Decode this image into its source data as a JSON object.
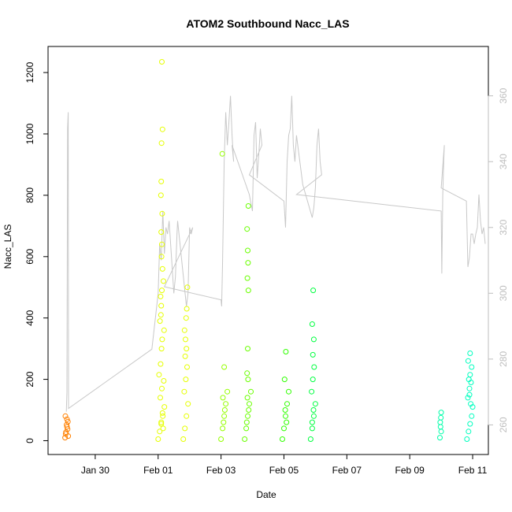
{
  "chart_data": {
    "type": "scatter",
    "title": "ATOM2 Southbound Nacc_LAS",
    "xlabel": "Date",
    "ylabel": "Nacc_LAS",
    "x_unit": "days since Jan 30",
    "xlim": [
      -1.5,
      12.5
    ],
    "ylim": [
      -45,
      1285
    ],
    "y2lim": [
      251,
      375
    ],
    "x_ticks": [
      {
        "x": 0,
        "label": "Jan 30"
      },
      {
        "x": 2,
        "label": "Feb 01"
      },
      {
        "x": 4,
        "label": "Feb 03"
      },
      {
        "x": 6,
        "label": "Feb 05"
      },
      {
        "x": 8,
        "label": "Feb 07"
      },
      {
        "x": 10,
        "label": "Feb 09"
      },
      {
        "x": 12,
        "label": "Feb 11"
      }
    ],
    "y_ticks": [
      0,
      200,
      400,
      600,
      800,
      1000,
      1200
    ],
    "y2_ticks": [
      260,
      280,
      300,
      320,
      340,
      360
    ],
    "right_axis_color": "#bebebe",
    "line_color": "#c8c8c8",
    "point_series": [
      {
        "color": "#ff8000",
        "x": [
          -0.96,
          -0.93,
          -0.9,
          -0.87,
          -0.95,
          -0.91,
          -0.88,
          -0.94,
          -0.9,
          -0.86
        ],
        "y": [
          10,
          28,
          45,
          62,
          80,
          52,
          38,
          22,
          70,
          15
        ]
      },
      {
        "color": "#e6ff00",
        "x": [
          2.0,
          2.05,
          2.1,
          2.15,
          2.2,
          2.07,
          2.12,
          2.18,
          2.03,
          2.14,
          2.1,
          2.16,
          2.08,
          2.11,
          2.13,
          2.19,
          2.06,
          2.09,
          2.1,
          2.08,
          2.12,
          2.17,
          2.14,
          2.11,
          2.12,
          2.1,
          2.13,
          2.09,
          2.1,
          2.11,
          2.14,
          2.12
        ],
        "y": [
          5,
          30,
          55,
          80,
          110,
          140,
          170,
          195,
          215,
          90,
          60,
          40,
          250,
          300,
          330,
          360,
          390,
          410,
          440,
          470,
          490,
          520,
          560,
          600,
          640,
          680,
          740,
          800,
          845,
          970,
          1015,
          1235
        ]
      },
      {
        "color": "#e6ff00",
        "x": [
          2.8,
          2.85,
          2.9,
          2.95,
          2.83,
          2.88,
          2.92,
          2.86,
          2.9,
          2.87,
          2.84,
          2.89,
          2.91,
          2.93
        ],
        "y": [
          5,
          40,
          80,
          120,
          160,
          200,
          240,
          275,
          300,
          330,
          360,
          400,
          430,
          500
        ]
      },
      {
        "color": "#95ff00",
        "x": [
          4.0,
          4.05,
          4.1,
          4.15,
          4.2,
          4.08,
          4.12,
          4.06,
          4.1,
          4.04
        ],
        "y": [
          5,
          40,
          80,
          120,
          160,
          60,
          100,
          140,
          240,
          935
        ]
      },
      {
        "color": "#6aff00",
        "x": [
          4.75,
          4.8,
          4.85,
          4.9,
          4.95,
          4.82,
          4.88,
          4.84,
          4.86,
          4.83,
          4.85,
          4.87,
          4.84,
          4.86,
          4.85,
          4.83,
          4.87
        ],
        "y": [
          5,
          40,
          80,
          120,
          160,
          60,
          100,
          140,
          200,
          220,
          300,
          490,
          530,
          580,
          620,
          690,
          765
        ]
      },
      {
        "color": "#30ff00",
        "x": [
          5.95,
          6.0,
          6.05,
          6.1,
          6.15,
          6.02,
          6.08,
          6.04,
          6.06
        ],
        "y": [
          5,
          40,
          80,
          120,
          160,
          200,
          60,
          100,
          290
        ]
      },
      {
        "color": "#00ff40",
        "x": [
          6.85,
          6.9,
          6.95,
          7.0,
          6.88,
          6.92,
          6.9,
          6.94,
          6.96,
          6.92,
          6.95,
          6.9,
          6.93
        ],
        "y": [
          5,
          40,
          80,
          120,
          160,
          200,
          60,
          100,
          240,
          280,
          330,
          380,
          490
        ]
      },
      {
        "color": "#00ffaa",
        "x": [
          10.96,
          11.0,
          10.98,
          10.97,
          10.99,
          11.0
        ],
        "y": [
          10,
          30,
          45,
          60,
          75,
          92
        ]
      },
      {
        "color": "#00ffbf",
        "x": [
          11.82,
          11.87,
          11.92,
          11.97,
          12.0,
          11.85,
          11.9,
          11.95,
          11.88,
          11.92,
          11.97,
          11.9,
          11.94,
          11.86,
          11.92
        ],
        "y": [
          5,
          30,
          55,
          80,
          110,
          140,
          170,
          190,
          200,
          215,
          240,
          150,
          120,
          260,
          285
        ]
      }
    ],
    "line_series": {
      "axis": "right",
      "x": [
        -0.92,
        -0.9,
        -0.88,
        -0.86,
        -0.85,
        1.8,
        2.0,
        2.05,
        2.1,
        2.15,
        2.2,
        2.25,
        2.3,
        2.35,
        2.5,
        2.55,
        2.6,
        2.62,
        2.9,
        2.95,
        3.0,
        3.05,
        3.1,
        2.2,
        4.0,
        4.02,
        4.05,
        4.1,
        4.15,
        4.2,
        4.25,
        4.3,
        4.35,
        4.4,
        4.35,
        4.9,
        5.0,
        5.05,
        5.1,
        5.15,
        5.2,
        5.25,
        5.3,
        4.9,
        6.0,
        6.05,
        6.1,
        6.15,
        6.2,
        6.25,
        6.3,
        6.35,
        6.4,
        6.6,
        6.9,
        6.95,
        7.0,
        7.05,
        7.1,
        7.15,
        7.2,
        6.4,
        11.0,
        11.02,
        11.05,
        11.08,
        11.1,
        11.0,
        11.8,
        11.85,
        11.9,
        11.95,
        12.0,
        12.05,
        12.1,
        12.15,
        12.2,
        12.25,
        12.3,
        12.35,
        12.4
      ],
      "y": [
        264,
        270,
        350,
        355,
        265,
        283,
        300,
        315,
        310,
        325,
        312,
        320,
        318,
        322,
        300,
        305,
        318,
        322,
        296,
        300,
        320,
        318,
        320,
        302,
        298,
        296,
        310,
        340,
        355,
        345,
        352,
        360,
        348,
        340,
        345,
        330,
        325,
        348,
        352,
        335,
        342,
        350,
        345,
        336,
        328,
        320,
        340,
        348,
        350,
        360,
        345,
        340,
        348,
        333,
        323,
        326,
        332,
        345,
        350,
        340,
        336,
        330,
        325,
        306,
        330,
        340,
        345,
        332,
        328,
        308,
        311,
        318,
        318,
        315,
        318,
        320,
        330,
        322,
        318,
        320,
        315
      ]
    }
  }
}
